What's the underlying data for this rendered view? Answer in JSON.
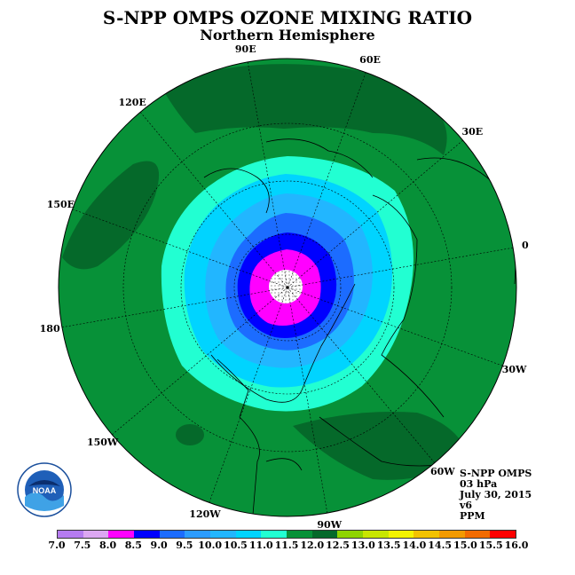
{
  "title": "S-NPP OMPS OZONE MIXING RATIO",
  "subtitle": "Northern Hemisphere",
  "longitude_labels": [
    {
      "text": "90E",
      "lon": 90
    },
    {
      "text": "60E",
      "lon": 60
    },
    {
      "text": "30E",
      "lon": 30
    },
    {
      "text": "0",
      "lon": 0
    },
    {
      "text": "30W",
      "lon": -30
    },
    {
      "text": "60W",
      "lon": -60
    },
    {
      "text": "90W",
      "lon": -90
    },
    {
      "text": "120W",
      "lon": -120
    },
    {
      "text": "150W",
      "lon": -150
    },
    {
      "text": "180",
      "lon": 180
    },
    {
      "text": "150E",
      "lon": 150
    },
    {
      "text": "120E",
      "lon": 120
    }
  ],
  "info": {
    "line1": "S-NPP OMPS",
    "line2": "03 hPa",
    "line3": "July 30, 2015",
    "line4": "v6",
    "line5": "PPM"
  },
  "logo": {
    "text": "NOAA",
    "icon": "noaa-logo"
  },
  "colorbar": {
    "ticks": [
      "7.0",
      "7.5",
      "8.0",
      "8.5",
      "9.0",
      "9.5",
      "10.0",
      "10.5",
      "11.0",
      "11.5",
      "12.0",
      "12.5",
      "13.0",
      "13.5",
      "14.0",
      "14.5",
      "15.0",
      "15.5",
      "16.0"
    ],
    "colors": [
      "#b57bf0",
      "#dca7f2",
      "#ff00ff",
      "#0000ff",
      "#1c6cff",
      "#2c9cff",
      "#22b6ff",
      "#00d4ff",
      "#22ffd2",
      "#079138",
      "#05692a",
      "#8fd400",
      "#c8e600",
      "#f3f300",
      "#f2c200",
      "#f29a00",
      "#f26b00",
      "#ff0000",
      "#8b5a3c"
    ]
  },
  "ozone_levels": [
    {
      "ppm": "11.5-12.0",
      "color": "#05692a"
    },
    {
      "ppm": "11.0-11.5",
      "color": "#079138"
    },
    {
      "ppm": "10.5-11.0",
      "color": "#22ffd2"
    },
    {
      "ppm": "10.0-10.5",
      "color": "#00d4ff"
    },
    {
      "ppm": "9.5-10.0",
      "color": "#22b6ff"
    },
    {
      "ppm": "9.0-9.5",
      "color": "#1c6cff"
    },
    {
      "ppm": "8.5-9.0",
      "color": "#0000ff"
    },
    {
      "ppm": "8.0-8.5",
      "color": "#ff00ff"
    }
  ]
}
